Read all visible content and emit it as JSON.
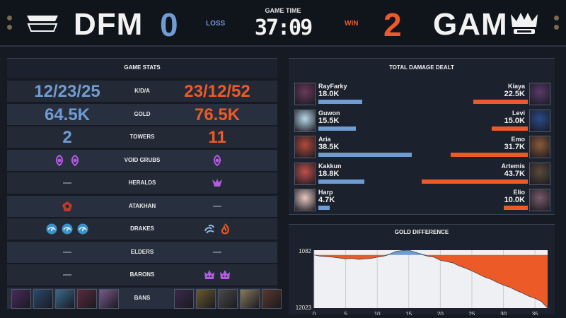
{
  "header": {
    "left_team": "DFM",
    "left_score": "0",
    "left_result": "LOSS",
    "time_label": "GAME TIME",
    "time_value": "37:09",
    "right_result": "WIN",
    "right_score": "2",
    "right_team": "GAM",
    "left_logo_text": "DFM",
    "right_logo_text": "GAM",
    "colors": {
      "blue": "#6f9cd3",
      "orange": "#ec5a28"
    }
  },
  "stats": {
    "title": "GAME STATS",
    "rows": [
      {
        "label": "K/D/A",
        "left": "12/23/25",
        "right": "23/12/52"
      },
      {
        "label": "GOLD",
        "left": "64.5K",
        "right": "76.5K"
      },
      {
        "label": "TOWERS",
        "left": "2",
        "right": "11"
      },
      {
        "label": "VOID GRUBS",
        "left_icons": [
          "void-grub-icon",
          "void-grub-icon"
        ],
        "right_icons": [
          "void-grub-icon"
        ]
      },
      {
        "label": "HERALDS",
        "left_icons": [],
        "right_icons": [
          "herald-icon"
        ]
      },
      {
        "label": "ATAKHAN",
        "left_icons": [
          "atakhan-icon"
        ],
        "right_icons": []
      },
      {
        "label": "DRAKES",
        "left_icons": [
          "ocean-drake-icon",
          "ocean-drake-icon",
          "ocean-drake-icon"
        ],
        "right_icons": [
          "cloud-drake-icon",
          "infernal-drake-icon"
        ]
      },
      {
        "label": "ELDERS",
        "left_icons": [],
        "right_icons": []
      },
      {
        "label": "BARONS",
        "left_icons": [],
        "right_icons": [
          "baron-icon",
          "baron-icon"
        ]
      },
      {
        "label": "BANS",
        "left_icons": [
          "champion-portrait",
          "champion-portrait",
          "champion-portrait",
          "champion-portrait",
          "champion-portrait"
        ],
        "right_icons": [
          "champion-portrait",
          "champion-portrait",
          "champion-portrait",
          "champion-portrait",
          "champion-portrait"
        ]
      }
    ]
  },
  "damage": {
    "title": "TOTAL DAMAGE DEALT",
    "max": 43.7,
    "rows": [
      {
        "left_name": "RayFarky",
        "left_value": "18.0K",
        "left_num": 18.0,
        "right_name": "Kiaya",
        "right_value": "22.5K",
        "right_num": 22.5
      },
      {
        "left_name": "Guwon",
        "left_value": "15.5K",
        "left_num": 15.5,
        "right_name": "Levi",
        "right_value": "15.0K",
        "right_num": 15.0
      },
      {
        "left_name": "Aria",
        "left_value": "38.5K",
        "left_num": 38.5,
        "right_name": "Emo",
        "right_value": "31.7K",
        "right_num": 31.7
      },
      {
        "left_name": "Kakkun",
        "left_value": "18.8K",
        "left_num": 18.8,
        "right_name": "Artemis",
        "right_value": "43.7K",
        "right_num": 43.7
      },
      {
        "left_name": "Harp",
        "left_value": "4.7K",
        "left_num": 4.7,
        "right_name": "Elio",
        "right_value": "10.0K",
        "right_num": 10.0
      }
    ]
  },
  "gold_diff": {
    "title": "GOLD DIFFERENCE",
    "y_top_label": "1082",
    "y_bottom_label": "12023",
    "x_ticks": [
      "0",
      "5",
      "10",
      "15",
      "20",
      "25",
      "30",
      "35"
    ],
    "x_tick_values": [
      0,
      5,
      10,
      15,
      20,
      25,
      30,
      35
    ],
    "x_max": 37,
    "y_min": -12023,
    "y_max": 1082,
    "series": [
      [
        0,
        0
      ],
      [
        1,
        -300
      ],
      [
        2,
        -400
      ],
      [
        3,
        -500
      ],
      [
        4,
        -700
      ],
      [
        5,
        -900
      ],
      [
        6,
        -800
      ],
      [
        7,
        -1000
      ],
      [
        8,
        -900
      ],
      [
        9,
        -800
      ],
      [
        10,
        -500
      ],
      [
        11,
        -300
      ],
      [
        12,
        200
      ],
      [
        13,
        800
      ],
      [
        14,
        1000
      ],
      [
        15,
        1082
      ],
      [
        16,
        600
      ],
      [
        17,
        200
      ],
      [
        18,
        -300
      ],
      [
        19,
        -500
      ],
      [
        20,
        -1200
      ],
      [
        21,
        -1500
      ],
      [
        22,
        -1800
      ],
      [
        23,
        -2500
      ],
      [
        24,
        -3000
      ],
      [
        25,
        -3600
      ],
      [
        26,
        -4300
      ],
      [
        27,
        -5000
      ],
      [
        28,
        -5500
      ],
      [
        29,
        -6200
      ],
      [
        30,
        -6800
      ],
      [
        31,
        -7300
      ],
      [
        32,
        -8000
      ],
      [
        33,
        -8600
      ],
      [
        34,
        -9300
      ],
      [
        35,
        -9800
      ],
      [
        36,
        -10500
      ],
      [
        37,
        -12023
      ]
    ]
  }
}
